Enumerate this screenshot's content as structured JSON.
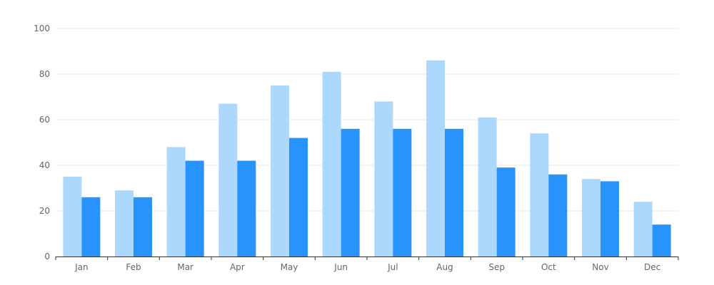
{
  "chart_data": {
    "type": "bar",
    "categories": [
      "Jan",
      "Feb",
      "Mar",
      "Apr",
      "May",
      "Jun",
      "Jul",
      "Aug",
      "Sep",
      "Oct",
      "Nov",
      "Dec"
    ],
    "series": [
      {
        "color": "#add8fd",
        "values": [
          35,
          29,
          48,
          67,
          75,
          81,
          68,
          86,
          61,
          54,
          34,
          24
        ]
      },
      {
        "color": "#2893fd",
        "values": [
          26,
          26,
          42,
          42,
          52,
          56,
          56,
          56,
          39,
          36,
          33,
          14
        ]
      }
    ],
    "ylim": [
      0,
      100
    ],
    "yticks": [
      0,
      20,
      40,
      60,
      80,
      100
    ],
    "grid": true,
    "legend": "none"
  }
}
